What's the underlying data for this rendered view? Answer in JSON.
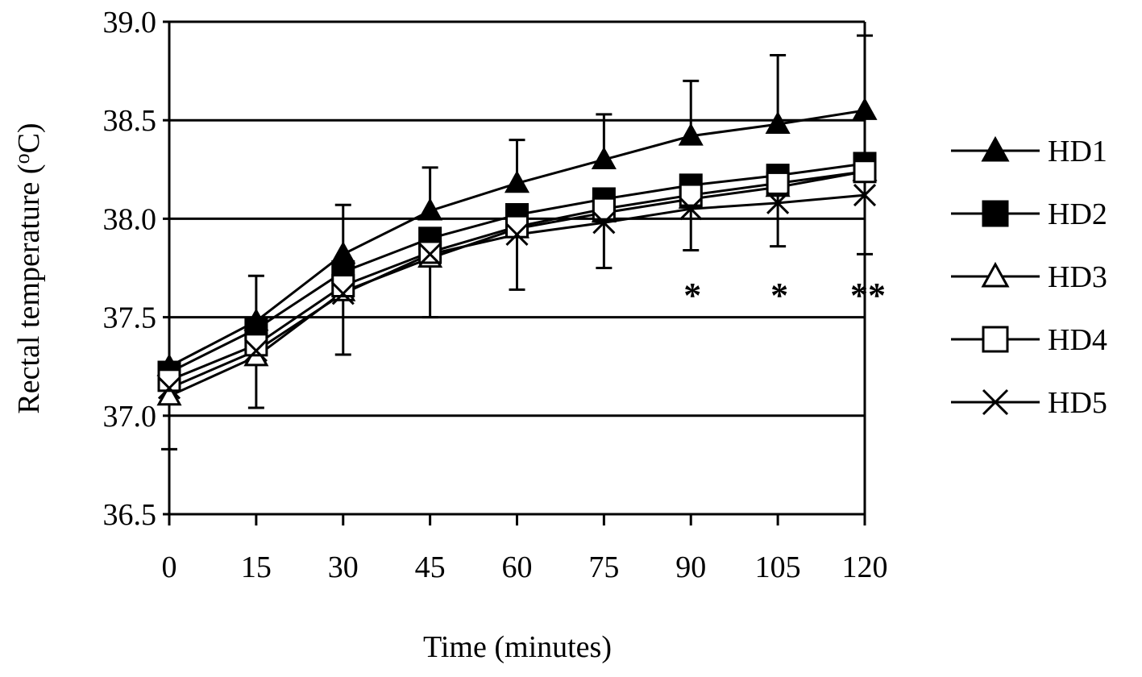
{
  "chart_data": {
    "type": "line",
    "title": "",
    "xlabel": "Time (minutes)",
    "ylabel": "Rectal temperature (",
    "ylabel_unit_sup": "o",
    "ylabel_unit": "C)",
    "x": [
      0,
      15,
      30,
      45,
      60,
      75,
      90,
      105,
      120
    ],
    "x_tick_labels": [
      "0",
      "15",
      "30",
      "45",
      "60",
      "75",
      "90",
      "105",
      "120"
    ],
    "ylim": [
      36.5,
      39.0
    ],
    "y_ticks": [
      36.5,
      37.0,
      37.5,
      38.0,
      38.5,
      39.0
    ],
    "y_tick_labels": [
      "36.5",
      "37.0",
      "37.5",
      "38.0",
      "38.5",
      "39.0"
    ],
    "grid": true,
    "legend_position": "right",
    "series": [
      {
        "name": "HD1",
        "marker": "filled-triangle",
        "values": [
          37.25,
          37.48,
          37.82,
          38.04,
          38.18,
          38.3,
          38.42,
          38.48,
          38.55
        ],
        "err": [
          0,
          0.23,
          0.25,
          0.22,
          0.22,
          0.23,
          0.28,
          0.35,
          0.38
        ]
      },
      {
        "name": "HD2",
        "marker": "filled-square",
        "values": [
          37.22,
          37.44,
          37.73,
          37.9,
          38.02,
          38.1,
          38.17,
          38.22,
          38.28
        ],
        "err": [
          0,
          0,
          0,
          0,
          0,
          0,
          0,
          0,
          0
        ]
      },
      {
        "name": "HD3",
        "marker": "open-triangle",
        "values": [
          37.1,
          37.3,
          37.63,
          37.8,
          37.95,
          38.03,
          38.1,
          38.16,
          38.24
        ],
        "err": [
          0.27,
          0.26,
          0.32,
          0.3,
          0.31,
          0.28,
          0.26,
          0.3,
          0.42
        ]
      },
      {
        "name": "HD4",
        "marker": "open-square",
        "values": [
          37.18,
          37.36,
          37.66,
          37.83,
          37.96,
          38.05,
          38.12,
          38.18,
          38.24
        ],
        "err": [
          0,
          0,
          0,
          0,
          0,
          0,
          0,
          0,
          0
        ]
      },
      {
        "name": "HD5",
        "marker": "x",
        "values": [
          37.14,
          37.33,
          37.62,
          37.82,
          37.92,
          37.98,
          38.05,
          38.08,
          38.12
        ],
        "err": [
          0,
          0,
          0,
          0,
          0,
          0,
          0,
          0,
          0
        ]
      }
    ],
    "annotations": [
      {
        "text": "*",
        "x": 90,
        "y": 37.65
      },
      {
        "text": "*",
        "x": 105,
        "y": 37.65
      },
      {
        "text": "**",
        "x": 120,
        "y": 37.65
      }
    ]
  }
}
